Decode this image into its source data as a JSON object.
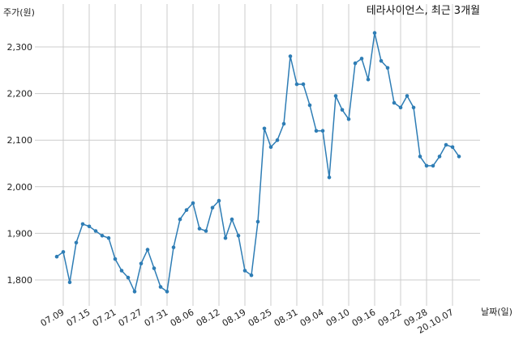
{
  "chart_data": {
    "type": "line",
    "title": "테라사이언스, 최근 3개월",
    "xlabel": "날짜(일)",
    "ylabel": "주가(원)",
    "ylim": [
      1740,
      2350
    ],
    "yticks": [
      1800,
      1900,
      2000,
      2100,
      2200,
      2300
    ],
    "ytick_labels": [
      "1,800",
      "1,900",
      "2,000",
      "2,100",
      "2,200",
      "2,300"
    ],
    "xtick_labels": [
      "07.09",
      "07.15",
      "07.21",
      "07.27",
      "07.31",
      "08.06",
      "08.12",
      "08.19",
      "08.25",
      "08.31",
      "09.04",
      "09.10",
      "09.16",
      "09.22",
      "09.28",
      "20.10.07"
    ],
    "grid": true,
    "line_color": "#2e7db5",
    "series": [
      {
        "values": [
          1850,
          1860,
          1795,
          1880,
          1920,
          1915,
          1905,
          1895,
          1890,
          1845,
          1820,
          1805,
          1775,
          1835,
          1865,
          1825,
          1785,
          1775,
          1870,
          1930,
          1950,
          1965,
          1910,
          1905,
          1955,
          1970,
          1890,
          1930,
          1895,
          1820,
          1810,
          1925,
          2125,
          2085,
          2100,
          2135,
          2280,
          2220,
          2220,
          2175,
          2120,
          2120,
          2020,
          2195,
          2165,
          2145,
          2265,
          2275,
          2230,
          2330,
          2270,
          2255,
          2180,
          2170,
          2195,
          2170,
          2065,
          2045,
          2045,
          2065,
          2090,
          2085,
          2065
        ]
      }
    ]
  }
}
